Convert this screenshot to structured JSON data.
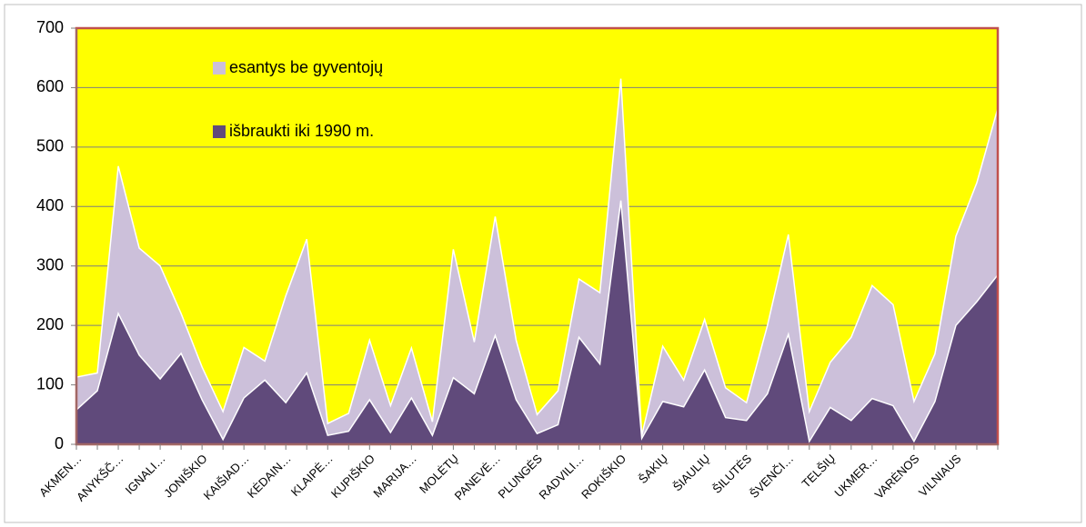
{
  "chart_data": {
    "type": "stacked-area",
    "categories": [
      "AKMEN…",
      null,
      "ANYKŠČ…",
      null,
      "IGNALI…",
      null,
      "JONIŠKIO",
      null,
      "KAIŠIAD…",
      null,
      "KĖDAIN…",
      null,
      "KLAIPĖ…",
      null,
      "KUPIŠKIO",
      null,
      "MARIJA…",
      null,
      "MOLĖTŲ",
      null,
      "PANEVĖ…",
      null,
      "PLUNGĖS",
      null,
      "RADVILI…",
      null,
      "ROKIŠKIO",
      null,
      "ŠAKIŲ",
      null,
      "ŠIAULIŲ",
      null,
      "ŠILUTĖS",
      null,
      "ŠVENČI…",
      null,
      "TELŠIŲ",
      null,
      "UKMER…",
      null,
      "VARĖNOS",
      null,
      "VILNIAUS",
      null,
      null
    ],
    "series": [
      {
        "name": "išbraukti iki 1990 m.",
        "color": "#604a7b",
        "values": [
          58,
          90,
          220,
          150,
          110,
          153,
          75,
          8,
          78,
          108,
          70,
          120,
          15,
          22,
          75,
          20,
          78,
          15,
          112,
          85,
          183,
          75,
          18,
          33,
          180,
          135,
          410,
          10,
          72,
          63,
          125,
          45,
          40,
          85,
          185,
          5,
          62,
          40,
          77,
          65,
          5,
          72,
          200,
          240,
          285
        ]
      },
      {
        "name": "esantys be gyventojų",
        "color": "#ccc0da",
        "values": [
          55,
          30,
          248,
          180,
          190,
          67,
          55,
          47,
          85,
          32,
          180,
          225,
          20,
          30,
          100,
          45,
          84,
          23,
          216,
          87,
          200,
          100,
          32,
          57,
          98,
          120,
          205,
          5,
          93,
          45,
          85,
          50,
          30,
          115,
          168,
          50,
          76,
          140,
          190,
          170,
          67,
          80,
          150,
          200,
          280
        ]
      }
    ],
    "ylim": [
      0,
      700
    ],
    "yticks": [
      0,
      100,
      200,
      300,
      400,
      500,
      600,
      700
    ],
    "grid": true,
    "plot_background": "#ffff00",
    "plot_border": "#c0504d"
  }
}
